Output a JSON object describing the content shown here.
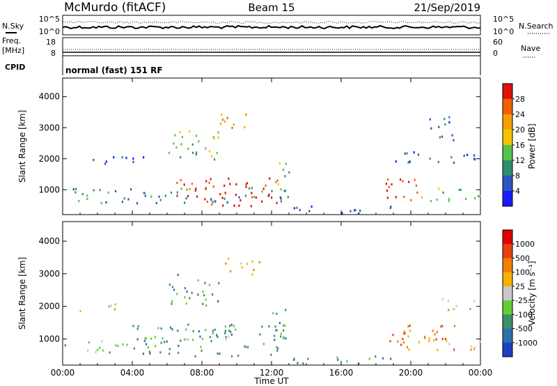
{
  "header": {
    "station": "McMurdo (fitACF)",
    "beam": "Beam 15",
    "date": "21/Sep/2019"
  },
  "top_panels": {
    "nsky_label": "N.Sky",
    "nsearch_label": "N.Search",
    "nsky_ticks": [
      "10^5",
      "10^0"
    ],
    "nsearch_ticks": [
      "10^5",
      "10^0"
    ],
    "freq_label_1": "Freq.",
    "freq_label_2": "[MHz]",
    "freq_ticks": [
      "18",
      "8"
    ],
    "nave_label": "Nave",
    "nave_ticks": [
      "60",
      "0"
    ],
    "cpid_label": "CPID",
    "cpid_text": "normal (fast) 151 RF"
  },
  "chart_data": [
    {
      "type": "heatmap",
      "name": "power-panel",
      "ylabel": "Slant Range [km]",
      "xlabel": "",
      "x_ticks": [
        "00:00",
        "04:00",
        "08:00",
        "12:00",
        "16:00",
        "20:00",
        "00:00"
      ],
      "y_ticks": [
        "1000",
        "2000",
        "3000",
        "4000"
      ],
      "ylim": [
        200,
        4600
      ],
      "xlim_hours": [
        0,
        24
      ],
      "colorbar": {
        "label": "Power [dB]",
        "ticks": [
          "4",
          "8",
          "12",
          "16",
          "20",
          "24",
          "28"
        ],
        "colors": [
          "#1a1aff",
          "#2a55c4",
          "#2e8f6e",
          "#58c24a",
          "#f5c400",
          "#f5a000",
          "#f06000",
          "#e01010"
        ]
      },
      "blobs": [
        {
          "t0": 0.0,
          "t1": 13.0,
          "r0": 600,
          "r1": 1100,
          "level": 2
        },
        {
          "t0": 6.5,
          "t1": 12.5,
          "r0": 500,
          "r1": 1400,
          "level": 7
        },
        {
          "t0": 12.0,
          "t1": 13.0,
          "r0": 900,
          "r1": 2000,
          "level": 3
        },
        {
          "t0": 0.5,
          "t1": 5.0,
          "r0": 1850,
          "r1": 2100,
          "level": 1
        },
        {
          "t0": 6.0,
          "t1": 9.0,
          "r0": 2000,
          "r1": 3000,
          "level": 3
        },
        {
          "t0": 9.0,
          "t1": 11.5,
          "r0": 3000,
          "r1": 3500,
          "level": 5
        },
        {
          "t0": 18.5,
          "t1": 20.5,
          "r0": 700,
          "r1": 1600,
          "level": 7
        },
        {
          "t0": 20.5,
          "t1": 24.0,
          "r0": 650,
          "r1": 1100,
          "level": 3
        },
        {
          "t0": 19.0,
          "t1": 24.0,
          "r0": 1900,
          "r1": 2300,
          "level": 1
        },
        {
          "t0": 21.0,
          "t1": 22.5,
          "r0": 2500,
          "r1": 3400,
          "level": 1
        },
        {
          "t0": 13.0,
          "t1": 19.0,
          "r0": 250,
          "r1": 500,
          "level": 1
        }
      ]
    },
    {
      "type": "heatmap",
      "name": "velocity-panel",
      "ylabel": "Slant Range [km]",
      "xlabel": "Time UT",
      "x_ticks": [
        "00:00",
        "04:00",
        "08:00",
        "12:00",
        "16:00",
        "20:00",
        "00:00"
      ],
      "y_ticks": [
        "1000",
        "2000",
        "3000",
        "4000"
      ],
      "ylim": [
        200,
        4600
      ],
      "xlim_hours": [
        0,
        24
      ],
      "colorbar": {
        "label": "Velocity [m s⁻¹]",
        "ticks": [
          "1000",
          "500",
          "100",
          "25",
          "-25",
          "-100",
          "-500",
          "-1000"
        ],
        "colors": [
          "#1f3fbf",
          "#2e6fae",
          "#3c8f6a",
          "#66cc33",
          "#c8c8c8",
          "#f5b000",
          "#f08000",
          "#e84010",
          "#e00000"
        ]
      },
      "blobs": [
        {
          "t0": 0.0,
          "t1": 4.0,
          "r0": 600,
          "r1": 1000,
          "level": 3
        },
        {
          "t0": 4.0,
          "t1": 13.0,
          "r0": 500,
          "r1": 1500,
          "level": 2
        },
        {
          "t0": 7.0,
          "t1": 10.0,
          "r0": 1000,
          "r1": 1500,
          "level": 3
        },
        {
          "t0": 12.0,
          "t1": 13.0,
          "r0": 900,
          "r1": 2000,
          "level": 2
        },
        {
          "t0": 0.5,
          "t1": 3.0,
          "r0": 1850,
          "r1": 2100,
          "level": 4
        },
        {
          "t0": 6.0,
          "t1": 9.0,
          "r0": 2000,
          "r1": 3000,
          "level": 2
        },
        {
          "t0": 9.0,
          "t1": 11.5,
          "r0": 3000,
          "r1": 3500,
          "level": 5
        },
        {
          "t0": 18.5,
          "t1": 22.5,
          "r0": 700,
          "r1": 1600,
          "level": 6
        },
        {
          "t0": 21.0,
          "t1": 24.0,
          "r0": 650,
          "r1": 1000,
          "level": 5
        },
        {
          "t0": 21.5,
          "t1": 24.0,
          "r0": 1900,
          "r1": 2300,
          "level": 4
        },
        {
          "t0": 13.0,
          "t1": 19.0,
          "r0": 250,
          "r1": 500,
          "level": 2
        }
      ]
    }
  ]
}
